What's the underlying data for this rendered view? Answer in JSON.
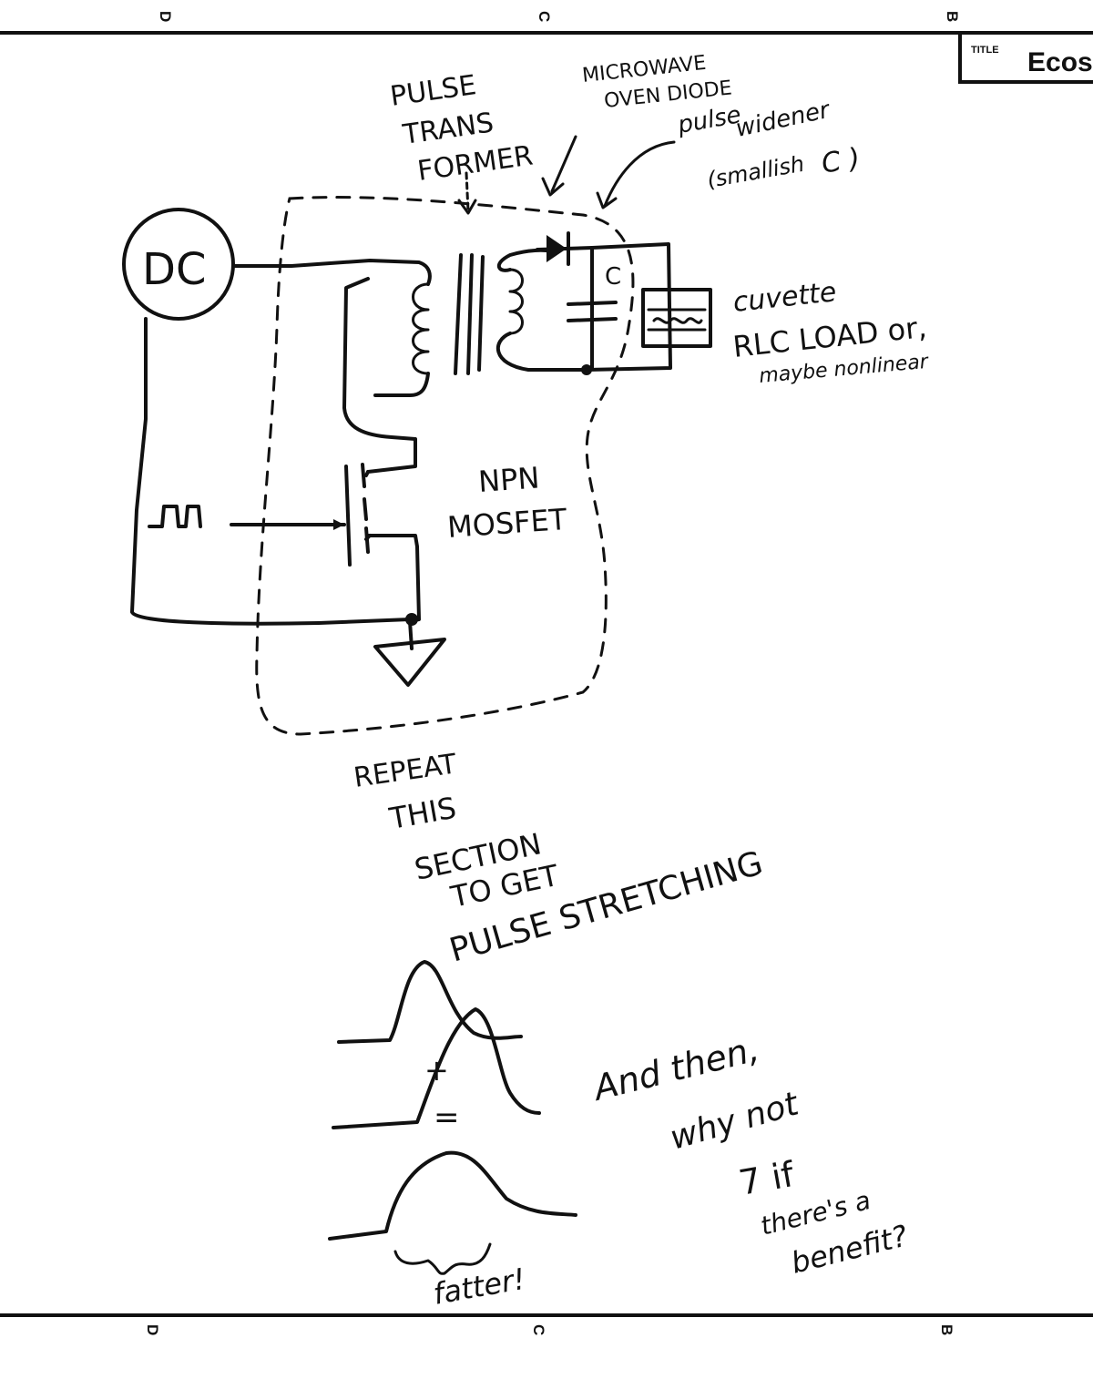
{
  "border": {
    "top_zone_labels": [
      "D",
      "C",
      "B"
    ],
    "bottom_zone_labels": [
      "D",
      "C",
      "B"
    ]
  },
  "title_block": {
    "label": "TITLE",
    "value": "Ecos"
  },
  "circuit": {
    "source_label": "DC",
    "capacitor_label": "C",
    "gate_signal_label": "⎍"
  },
  "annotations": {
    "pulse_transformer": [
      "PULSE",
      "TRANS",
      "FORMER"
    ],
    "diode_note": [
      "MICROWAVE",
      "OVEN DIODE"
    ],
    "pulse_widener": [
      "pulse",
      "widener",
      "(smallish",
      "C )"
    ],
    "cuvette": [
      "cuvette",
      "RLC LOAD or,",
      "maybe nonlinear"
    ],
    "mosfet": [
      "NPN",
      "MOSFET"
    ],
    "repeat": [
      "REPEAT",
      "THIS",
      "SECTION",
      "TO GET",
      "PULSE STRETCHING"
    ],
    "plus": "+",
    "equals": "=",
    "fatter": "fatter!",
    "why_not": [
      "And then,",
      "why not",
      "7 if",
      "there's a",
      "benefit?"
    ]
  },
  "colors": {
    "ink": "#111111",
    "paper": "#ffffff"
  }
}
